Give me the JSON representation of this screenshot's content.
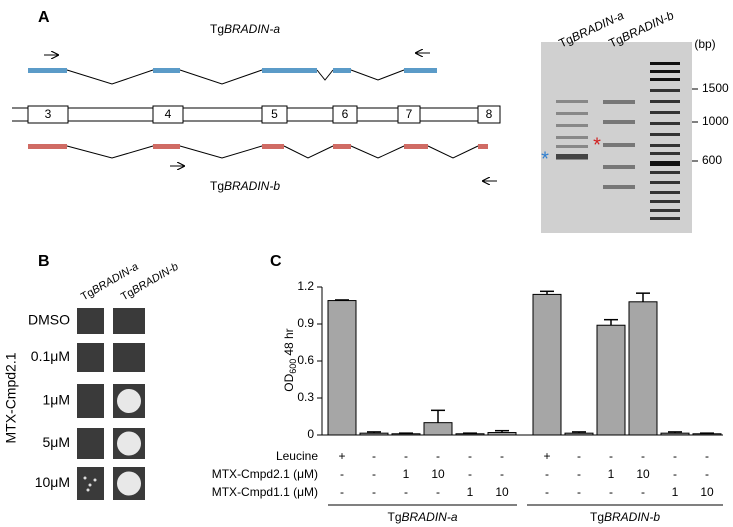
{
  "panel_a": {
    "label": "A",
    "gene_a": {
      "prefix": "Tg",
      "name": "BRADIN-a"
    },
    "gene_b": {
      "prefix": "Tg",
      "name": "BRADIN-b"
    },
    "exons": [
      "3",
      "4",
      "5",
      "6",
      "7",
      "8"
    ],
    "gel": {
      "lanes": [
        {
          "prefix": "Tg",
          "name": "BRADIN-a"
        },
        {
          "prefix": "Tg",
          "name": "BRADIN-b"
        }
      ],
      "unit": "(bp)",
      "markers": [
        "1500",
        "1000",
        "600"
      ],
      "stars": [
        "*",
        "*"
      ]
    }
  },
  "panel_b": {
    "label": "B",
    "columns": [
      {
        "prefix": "Tg",
        "name": "BRADIN-a"
      },
      {
        "prefix": "Tg",
        "name": "BRADIN-b"
      }
    ],
    "rows": [
      "DMSO",
      "0.1μM",
      "1μM",
      "5μM",
      "10μM"
    ],
    "compound": "MTX-Cmpd2.1"
  },
  "chart_data": {
    "type": "bar",
    "label": "C",
    "y_label": {
      "main": "OD",
      "sub": "600",
      "rest": "48 hr"
    },
    "ylim": [
      0,
      1.2
    ],
    "yticks": [
      0,
      0.3,
      0.6,
      0.9,
      1.2
    ],
    "color": "#a6a6a6",
    "series": [
      {
        "values": [
          1.09,
          0.015,
          0.01,
          0.1,
          0.01,
          0.02,
          1.14,
          0.015,
          0.89,
          1.08,
          0.015,
          0.01
        ],
        "errors": [
          0.005,
          0.01,
          0.005,
          0.1,
          0.005,
          0.015,
          0.025,
          0.01,
          0.045,
          0.07,
          0.01,
          0.005
        ]
      }
    ],
    "conditions": [
      {
        "label": "Leucine",
        "values": [
          "+",
          "-",
          "-",
          "-",
          "-",
          "-",
          "+",
          "-",
          "-",
          "-",
          "-",
          "-"
        ]
      },
      {
        "label": "MTX-Cmpd2.1 (μM)",
        "values": [
          "-",
          "-",
          "1",
          "10",
          "-",
          "-",
          "-",
          "-",
          "1",
          "10",
          "-",
          "-"
        ]
      },
      {
        "label": "MTX-Cmpd1.1 (μM)",
        "values": [
          "-",
          "-",
          "-",
          "-",
          "1",
          "10",
          "-",
          "-",
          "-",
          "-",
          "1",
          "10"
        ]
      }
    ],
    "groups": [
      {
        "prefix": "Tg",
        "name": "BRADIN-a"
      },
      {
        "prefix": "Tg",
        "name": "BRADIN-b"
      }
    ]
  }
}
